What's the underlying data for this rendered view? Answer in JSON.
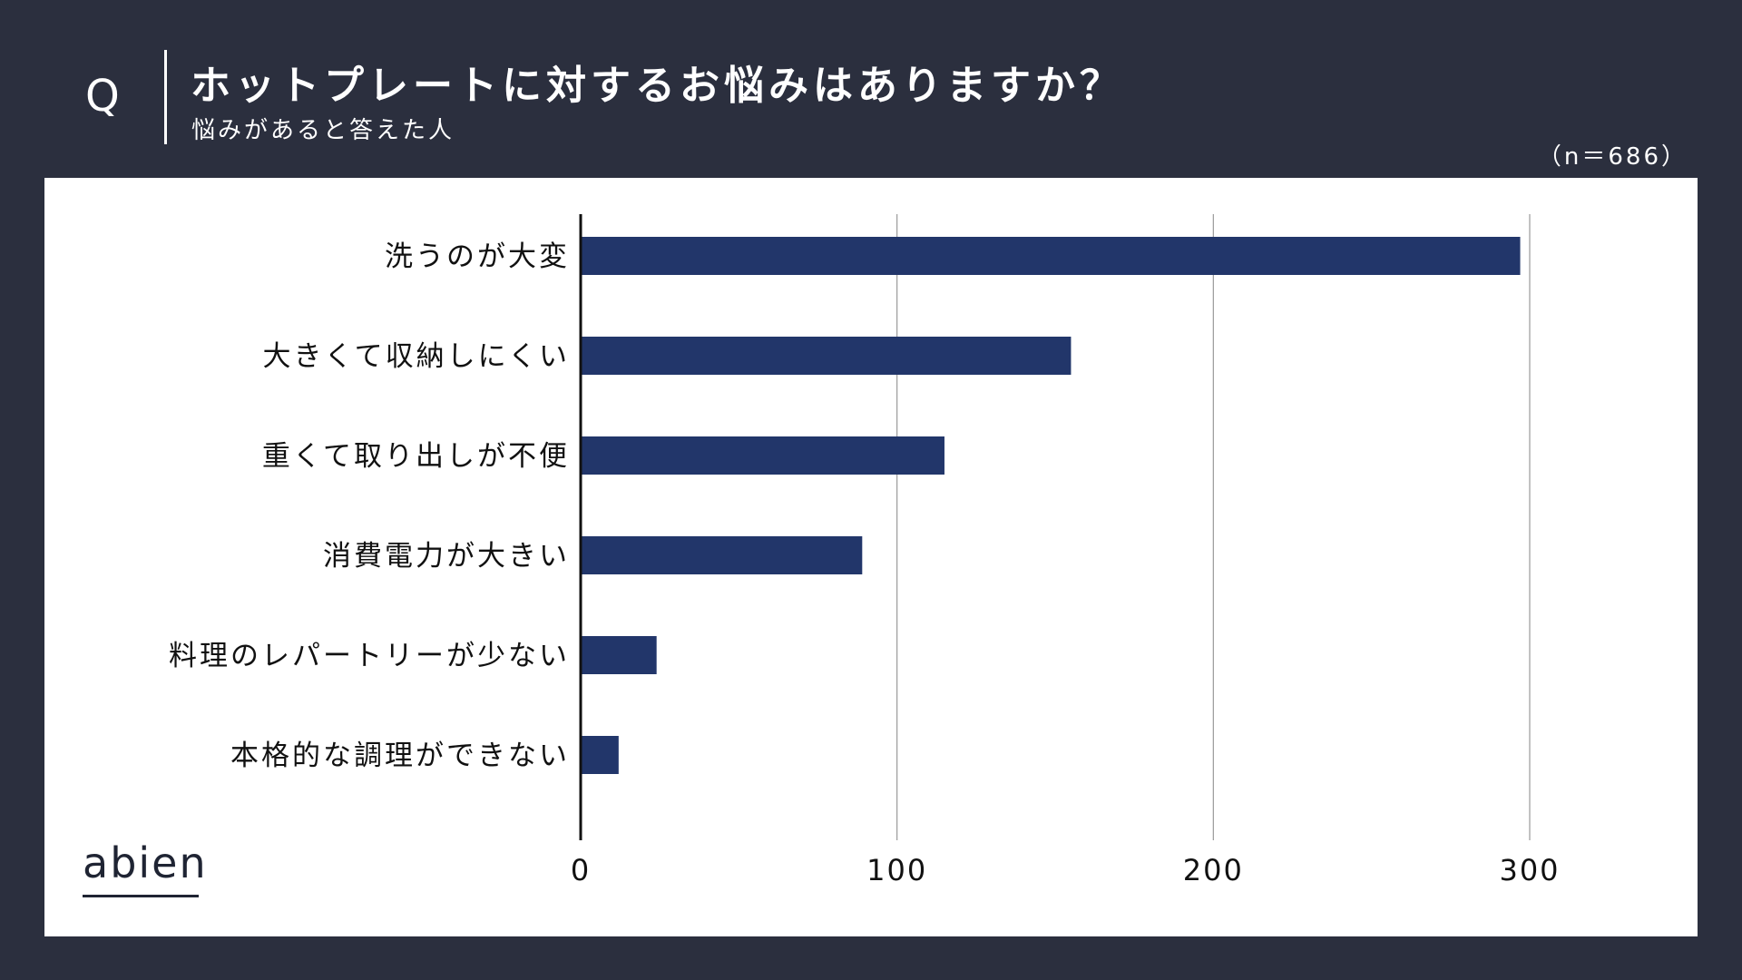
{
  "header": {
    "q_mark": "Q",
    "question": "ホットプレートに対するお悩みはありますか？",
    "subtitle": "悩みがあると答えた人",
    "sample_size": "（n＝686）"
  },
  "brand": {
    "logo_text": "abien"
  },
  "chart_data": {
    "type": "bar",
    "orientation": "horizontal",
    "title": "",
    "xlabel": "",
    "ylabel": "",
    "categories": [
      "洗うのが大変",
      "大きくて収納しにくい",
      "重くて取り出しが不便",
      "消費電力が大きい",
      "料理のレパートリーが少ない",
      "本格的な調理ができない"
    ],
    "values": [
      297,
      155,
      115,
      89,
      24,
      12
    ],
    "xlim": [
      0,
      300
    ],
    "ticks": [
      0,
      100,
      200,
      300
    ],
    "tick_labels": [
      "0",
      "100",
      "200",
      "300"
    ],
    "grid": true,
    "bar_color": "#22366a",
    "grid_color": "#9a9a9a",
    "axis_color": "#111111"
  }
}
